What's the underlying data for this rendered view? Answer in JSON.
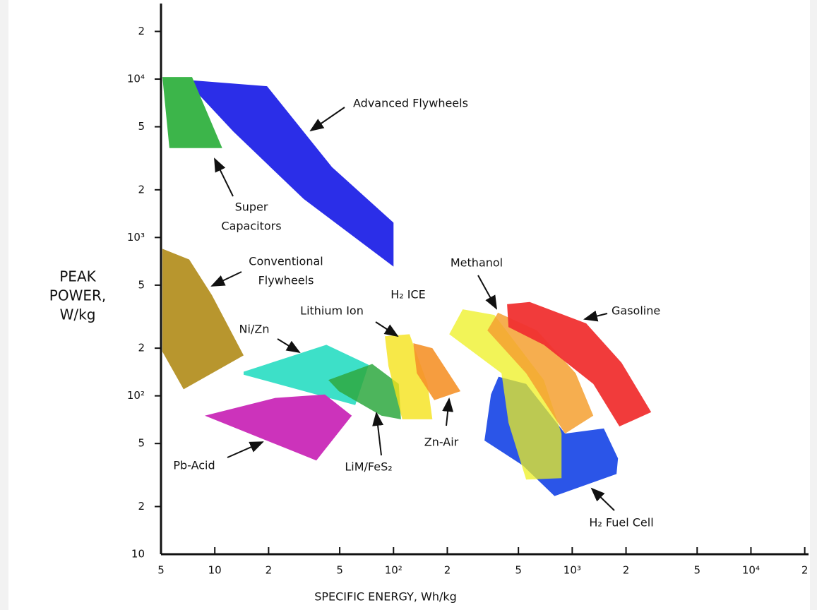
{
  "chart_data": {
    "type": "region",
    "x_label": "SPECIFIC ENERGY, Wh/kg",
    "y_label": [
      "PEAK",
      "POWER,",
      "W/kg"
    ],
    "xscale": "log",
    "yscale": "log",
    "xlim": [
      5,
      21000
    ],
    "ylim": [
      10,
      30000
    ],
    "xticks": [
      5,
      10,
      {
        "value": 20,
        "label": "2"
      },
      {
        "value": 50,
        "label": "5"
      },
      {
        "value": 100,
        "label": "10²"
      },
      {
        "value": 200,
        "label": "2"
      },
      {
        "value": 500,
        "label": "5"
      },
      {
        "value": 1000,
        "label": "10³"
      },
      {
        "value": 2000,
        "label": "2"
      },
      {
        "value": 5000,
        "label": "5"
      },
      {
        "value": 10000,
        "label": "10⁴"
      },
      {
        "value": 20000,
        "label": "2"
      }
    ],
    "yticks": [
      10,
      {
        "value": 20,
        "label": "2"
      },
      {
        "value": 50,
        "label": "5"
      },
      {
        "value": 100,
        "label": "10²"
      },
      {
        "value": 200,
        "label": "2"
      },
      {
        "value": 500,
        "label": "5"
      },
      {
        "value": 1000,
        "label": "10³"
      },
      {
        "value": 2000,
        "label": "2"
      },
      {
        "value": 5000,
        "label": "5"
      },
      {
        "value": 10000,
        "label": "10⁴"
      },
      {
        "value": 20000,
        "label": "2"
      }
    ],
    "series": [
      {
        "name": [
          "Advanced Flywheels"
        ],
        "color": "#2b2ee8",
        "opacity": 1,
        "x": [
          6.81,
          19.6,
          45.3,
          100,
          100,
          31.4,
          12.7
        ],
        "values": [
          9900,
          9020,
          2780,
          1240,
          655,
          1750,
          4660
        ]
      },
      {
        "name": [
          "Super",
          "Capacitors"
        ],
        "color": "#3cb54a",
        "opacity": 1,
        "x": [
          5.09,
          7.46,
          11.0,
          5.57
        ],
        "values": [
          10300,
          10300,
          3670,
          3670
        ]
      },
      {
        "name": [
          "Conventional",
          "Flywheels"
        ],
        "color": "#b8962e",
        "opacity": 1,
        "x": [
          5.09,
          7.19,
          9.63,
          14.5,
          6.69,
          5.09
        ],
        "values": [
          848,
          726,
          433,
          180,
          110,
          190
        ]
      },
      {
        "name": [
          "Ni/Zn"
        ],
        "color": "#3de0c8",
        "opacity": 1,
        "x": [
          14.5,
          42.1,
          72.6,
          61.1,
          14.5
        ],
        "values": [
          142,
          210,
          157,
          87.5,
          136
        ]
      },
      {
        "name": [
          "Pb-Acid"
        ],
        "color": "#cc33bb",
        "opacity": 1,
        "x": [
          8.79,
          21.8,
          41.3,
          58.4,
          37.0
        ],
        "values": [
          74.9,
          97,
          102,
          74.9,
          39.1
        ]
      },
      {
        "name": [
          "LiM/FeS₂"
        ],
        "color": "#2ea840",
        "opacity": 0.85,
        "x": [
          43.2,
          76,
          107,
          110,
          85.5,
          49.5
        ],
        "values": [
          126,
          159,
          119,
          71.1,
          74.9,
          107
        ]
      },
      {
        "name": [
          "Lithium Ion"
        ],
        "color": "#f5e21a",
        "opacity": 0.8,
        "x": [
          89.5,
          123,
          155,
          165,
          112,
          93.7
        ],
        "values": [
          238,
          245,
          119,
          71.1,
          71.1,
          154
        ]
      },
      {
        "name": [
          "Zn-Air"
        ],
        "color": "#f5922a",
        "opacity": 0.9,
        "x": [
          129,
          165,
          237,
          169,
          135
        ],
        "values": [
          215,
          200,
          107,
          94,
          139
        ]
      },
      {
        "name": [
          "H₂ Fuel Cell"
        ],
        "color": "#2b55e8",
        "opacity": 1,
        "x": [
          387,
          552,
          912,
          1503,
          1803,
          1770,
          796,
          528,
          323,
          351
        ],
        "values": [
          132,
          119,
          57.8,
          62.2,
          40.3,
          32.1,
          23.3,
          36.4,
          52.2,
          102
        ]
      },
      {
        "name": [
          "H₂ ICE"
        ],
        "color": "#eef020",
        "opacity": 0.75,
        "x": [
          205,
          244,
          367,
          693,
          871,
          871,
          552,
          440,
          402
        ],
        "values": [
          245,
          352,
          324,
          126,
          57.8,
          30.2,
          29.6,
          67.6,
          139
        ]
      },
      {
        "name": [
          "Methanol"
        ],
        "color": "#f5a030",
        "opacity": 0.85,
        "x": [
          335,
          384,
          634,
          1045,
          1312,
          912,
          552
        ],
        "values": [
          259,
          335,
          259,
          139,
          74.9,
          57.8,
          139
        ]
      },
      {
        "name": [
          "Gasoline"
        ],
        "color": "#f03030",
        "opacity": 0.95,
        "x": [
          432,
          578,
          1197,
          1888,
          2767,
          1837,
          1312,
          693,
          440
        ],
        "values": [
          379,
          391,
          287,
          162,
          78.9,
          64.1,
          119,
          210,
          272
        ]
      }
    ]
  }
}
